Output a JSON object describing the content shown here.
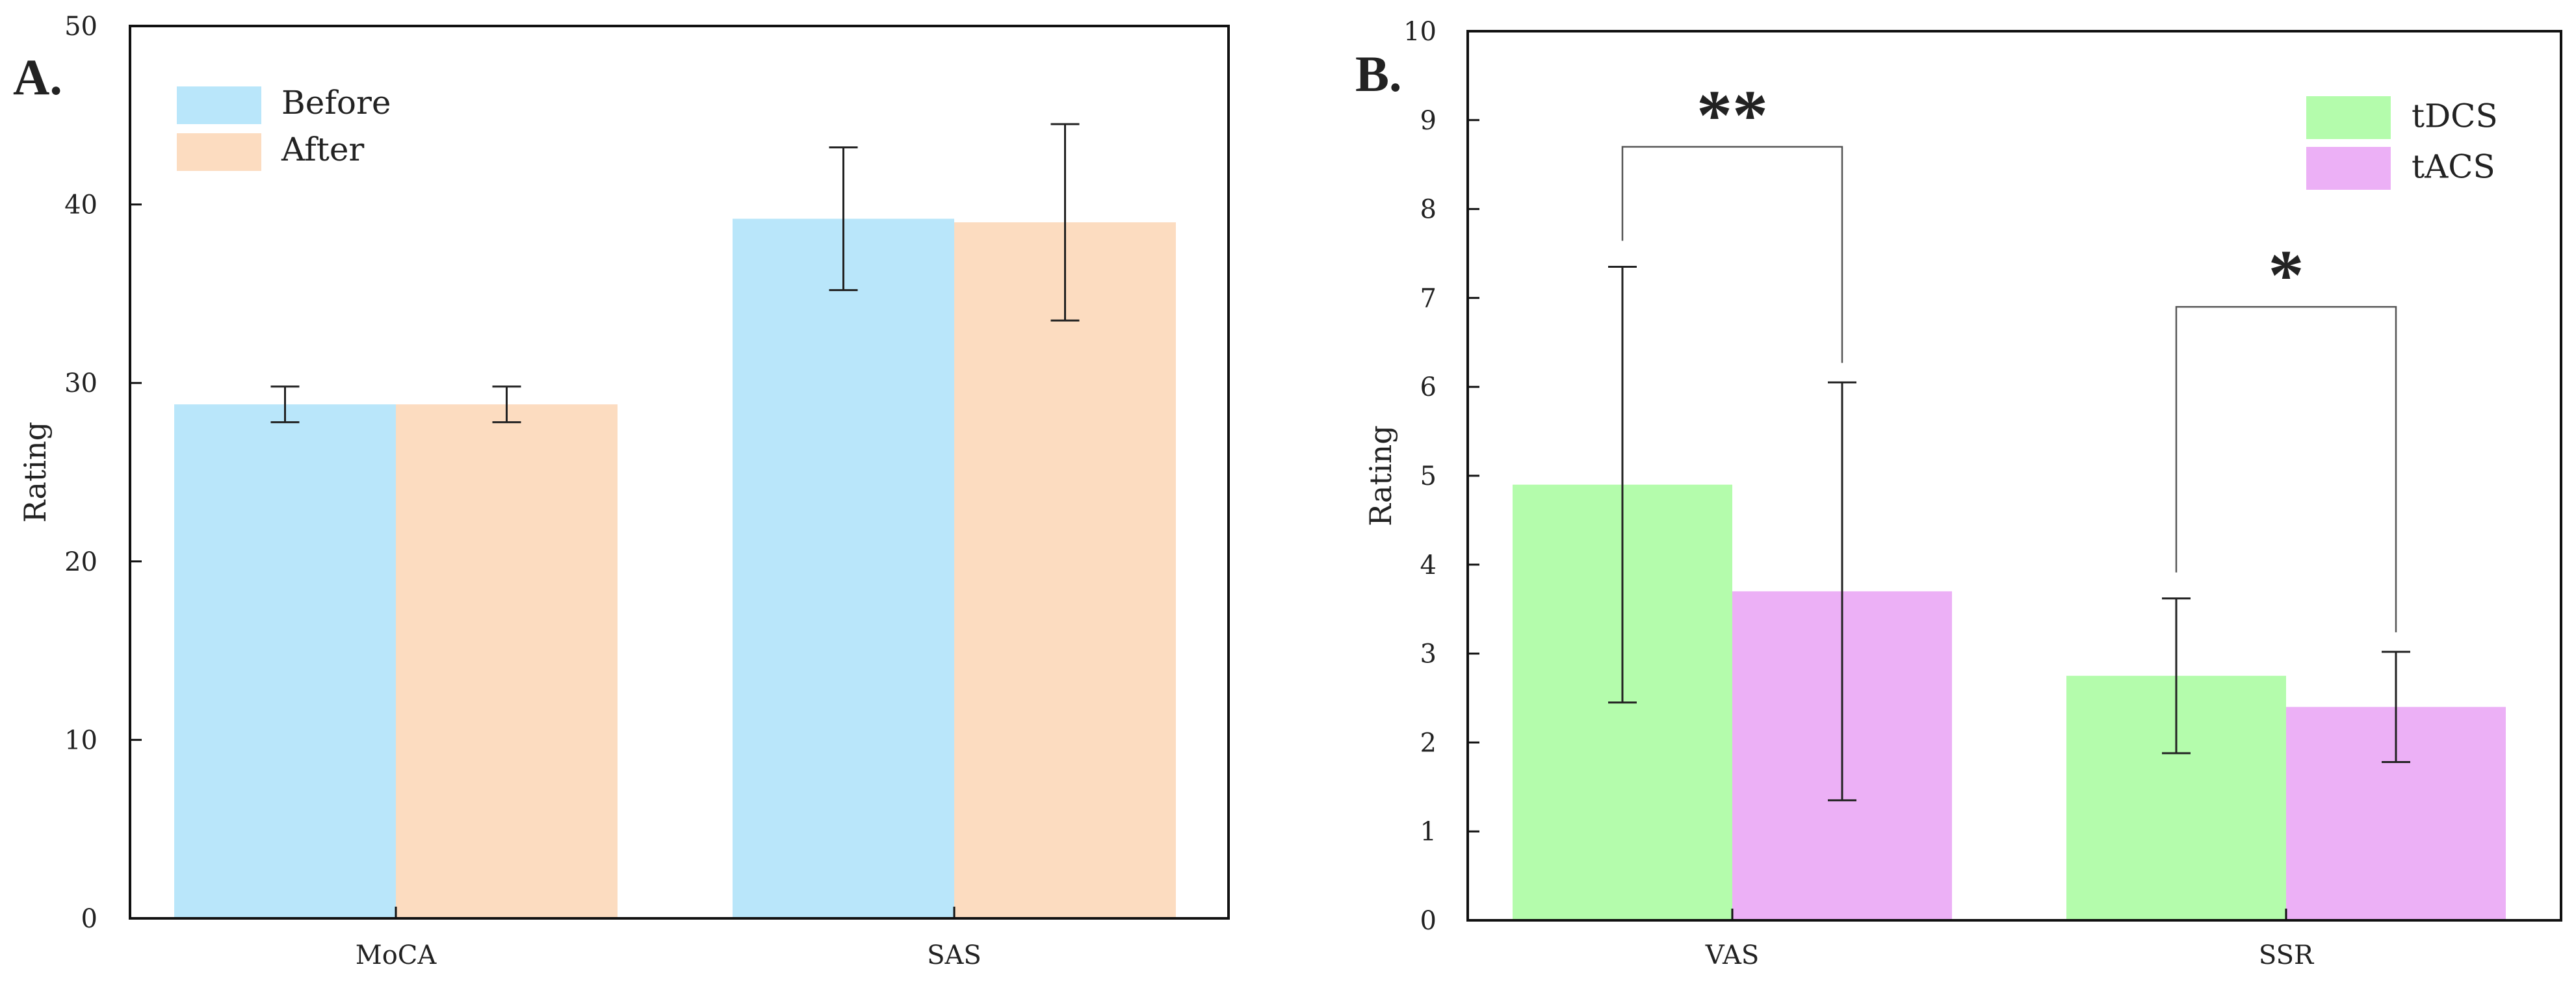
{
  "chart_data": [
    {
      "type": "bar",
      "panel_label": "A.",
      "categories": [
        "MoCA",
        "SAS"
      ],
      "series": [
        {
          "name": "Before",
          "values": [
            28.8,
            39.2
          ],
          "errors": [
            1.0,
            4.0
          ],
          "color": "#b9e6fa"
        },
        {
          "name": "After",
          "values": [
            28.8,
            39.0
          ],
          "errors": [
            1.0,
            5.5
          ],
          "color": "#fcdcc0"
        }
      ],
      "ylabel": "Rating",
      "xlabel": "",
      "ylim": [
        0,
        50
      ],
      "yticks": [
        "0",
        "10",
        "20",
        "30",
        "40",
        "50"
      ],
      "legend": "top-left",
      "grid": false,
      "significance": []
    },
    {
      "type": "bar",
      "panel_label": "B.",
      "categories": [
        "VAS",
        "SSR"
      ],
      "series": [
        {
          "name": "tDCS",
          "values": [
            4.9,
            2.75
          ],
          "errors": [
            2.45,
            0.87
          ],
          "color": "#b4fcac"
        },
        {
          "name": "tACS",
          "values": [
            3.7,
            2.4
          ],
          "errors": [
            2.35,
            0.62
          ],
          "color": "#ecb0f6"
        }
      ],
      "ylabel": "Rating",
      "xlabel": "",
      "ylim": [
        0,
        10
      ],
      "yticks": [
        "0",
        "1",
        "2",
        "3",
        "4",
        "5",
        "6",
        "7",
        "8",
        "9",
        "10"
      ],
      "legend": "top-right",
      "grid": false,
      "significance": [
        {
          "category": 0,
          "label": "**",
          "bracket_top": 8.7
        },
        {
          "category": 1,
          "label": "*",
          "bracket_top": 6.9
        }
      ]
    }
  ]
}
